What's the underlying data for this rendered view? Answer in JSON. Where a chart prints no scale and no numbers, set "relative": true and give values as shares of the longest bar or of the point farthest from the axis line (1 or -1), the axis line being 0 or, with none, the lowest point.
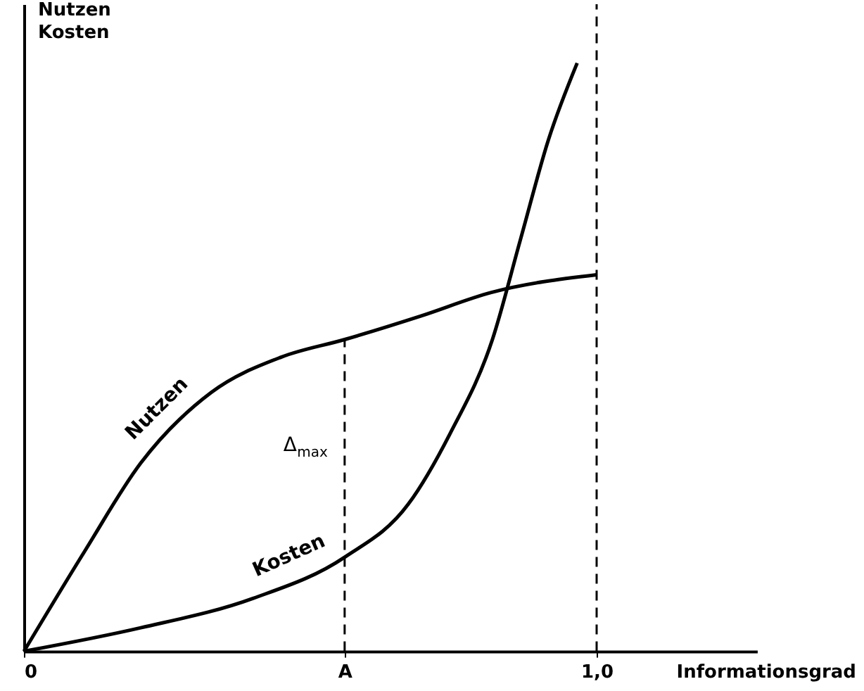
{
  "chart_data": {
    "type": "line",
    "relative": true,
    "xlabel": "Informationsgrad",
    "ylabel": "Nutzen\nKosten",
    "xlim": [
      0,
      1.28
    ],
    "xticks": [
      0,
      {
        "value": 0.56,
        "label": "A"
      },
      {
        "value": 1,
        "label": "1,0"
      }
    ],
    "series": [
      {
        "name": "Nutzen",
        "color": "#000000",
        "x": [
          0,
          0.106,
          0.204,
          0.327,
          0.449,
          0.56,
          0.693,
          0.816,
          1.0
        ],
        "values": [
          0,
          0.17,
          0.32,
          0.44,
          0.5,
          0.53,
          0.57,
          0.61,
          0.64
        ]
      },
      {
        "name": "Kosten",
        "color": "#000000",
        "x": [
          0,
          0.204,
          0.4,
          0.56,
          0.671,
          0.744,
          0.818,
          0.867,
          0.916,
          0.966
        ],
        "values": [
          0,
          0.04,
          0.09,
          0.16,
          0.25,
          0.37,
          0.53,
          0.7,
          0.87,
          1.0
        ]
      }
    ],
    "ref_lines": [
      {
        "axis": "x",
        "value": 1,
        "line_style": "dashed"
      },
      {
        "axis": "x",
        "value": 0.56,
        "line_style": "dashed"
      }
    ],
    "annotations": [
      {
        "text": "Δ$_{max}$",
        "x": 0.56,
        "y": 0.35
      }
    ],
    "grid": false
  }
}
